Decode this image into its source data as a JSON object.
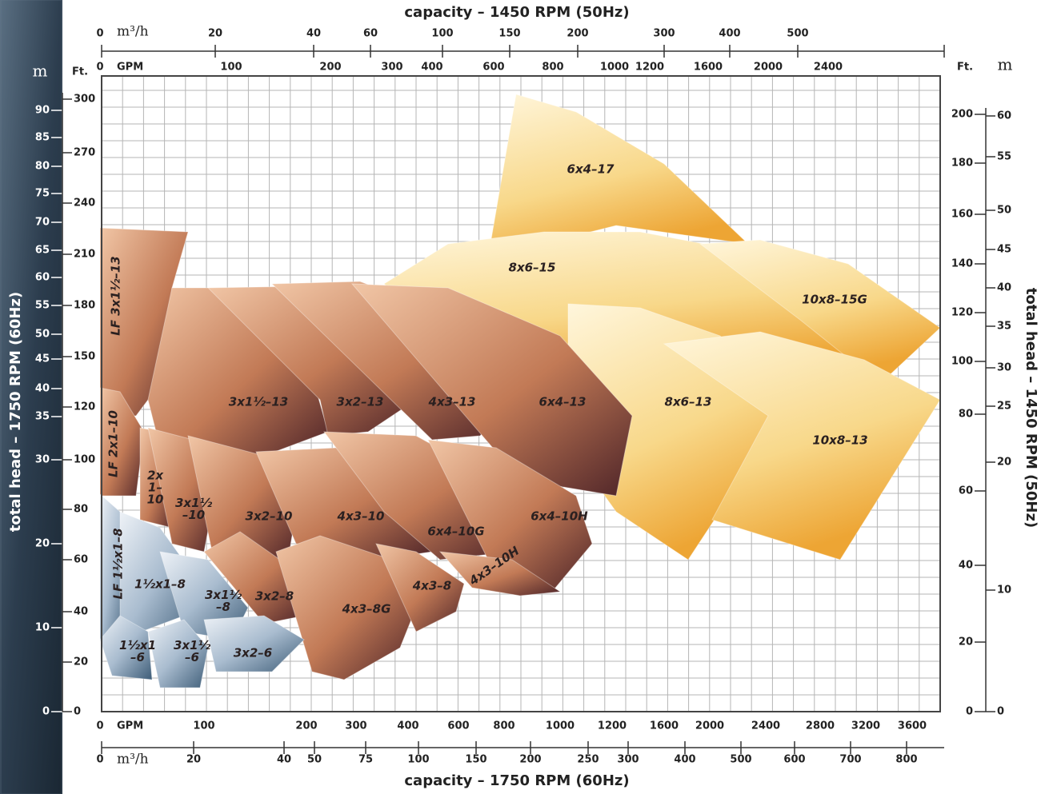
{
  "chart_data": {
    "type": "coverage",
    "title_top": "capacity – 1450 RPM (50Hz)",
    "title_bottom": "capacity – 1750 RPM (60Hz)",
    "y_label_left": "total head – 1750 RPM (60Hz)",
    "y_label_right": "total head – 1450 RPM (50Hz)",
    "axes": {
      "top_m3h": {
        "unit": "m³/h",
        "ticks": [
          0,
          20,
          40,
          60,
          100,
          150,
          200,
          300,
          400,
          500
        ]
      },
      "top_gpm": {
        "unit": "GPM",
        "ticks": [
          0,
          100,
          200,
          300,
          400,
          600,
          800,
          1000,
          1200,
          1600,
          2000,
          2400
        ]
      },
      "bottom_gpm": {
        "unit": "GPM",
        "ticks": [
          0,
          100,
          200,
          300,
          400,
          600,
          800,
          1000,
          1200,
          1600,
          2000,
          2400,
          2800,
          3200,
          3600
        ]
      },
      "bottom_m3h": {
        "unit": "m³/h",
        "ticks": [
          0,
          20,
          40,
          50,
          75,
          100,
          150,
          200,
          250,
          300,
          400,
          500,
          600,
          700,
          800
        ]
      },
      "left_m": {
        "unit": "m",
        "ticks": [
          0,
          10,
          20,
          30,
          35,
          40,
          45,
          50,
          55,
          60,
          65,
          70,
          75,
          80,
          85,
          90
        ]
      },
      "left_ft": {
        "unit": "Ft.",
        "ticks": [
          0,
          20,
          40,
          60,
          80,
          100,
          120,
          150,
          180,
          210,
          240,
          270,
          300
        ]
      },
      "right_ft": {
        "unit": "Ft.",
        "ticks": [
          0,
          20,
          40,
          60,
          80,
          100,
          120,
          140,
          160,
          180,
          200
        ]
      },
      "right_m": {
        "unit": "m",
        "ticks": [
          0,
          10,
          20,
          25,
          30,
          35,
          40,
          45,
          50,
          55,
          60
        ]
      }
    },
    "regions": [
      {
        "label": [
          "6x4–17"
        ]
      },
      {
        "label": [
          "8x6–15"
        ]
      },
      {
        "label": [
          "10x8–15G"
        ]
      },
      {
        "label": [
          "8x6–13"
        ]
      },
      {
        "label": [
          "10x8–13"
        ]
      },
      {
        "label": [
          "LF 3x1½–13"
        ]
      },
      {
        "label": [
          "3x1½–13"
        ]
      },
      {
        "label": [
          "3x2–13"
        ]
      },
      {
        "label": [
          "4x3–13"
        ]
      },
      {
        "label": [
          "6x4–13"
        ]
      },
      {
        "label": [
          "LF 2x1–10"
        ]
      },
      {
        "label": [
          "2x",
          "1–",
          "10"
        ]
      },
      {
        "label": [
          "3x1½",
          "–10"
        ]
      },
      {
        "label": [
          "3x2–10"
        ]
      },
      {
        "label": [
          "4x3–10"
        ]
      },
      {
        "label": [
          "6x4–10G"
        ]
      },
      {
        "label": [
          "6x4–10H"
        ]
      },
      {
        "label": [
          "3x2–8"
        ]
      },
      {
        "label": [
          "4x3–8G"
        ]
      },
      {
        "label": [
          "4x3–8"
        ]
      },
      {
        "label": [
          "4x3–10H"
        ]
      },
      {
        "label": [
          "LF 1½x1–8"
        ]
      },
      {
        "label": [
          "1½x1–8"
        ]
      },
      {
        "label": [
          "3x1½",
          "–8"
        ]
      },
      {
        "label": [
          "1½x1",
          "–6"
        ]
      },
      {
        "label": [
          "3x1½",
          "–6"
        ]
      },
      {
        "label": [
          "3x2–6"
        ]
      }
    ]
  }
}
